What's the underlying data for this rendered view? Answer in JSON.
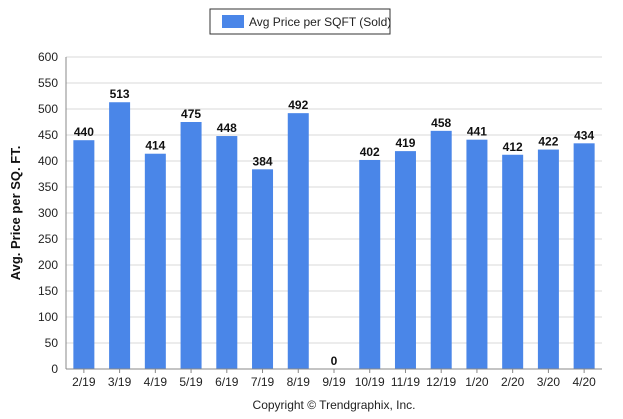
{
  "chart_data": {
    "type": "bar",
    "categories": [
      "2/19",
      "3/19",
      "4/19",
      "5/19",
      "6/19",
      "7/19",
      "8/19",
      "9/19",
      "10/19",
      "11/19",
      "12/19",
      "1/20",
      "2/20",
      "3/20",
      "4/20"
    ],
    "series": [
      {
        "name": "Avg Price per SQFT (Sold)",
        "values": [
          440,
          513,
          414,
          475,
          448,
          384,
          492,
          0,
          402,
          419,
          458,
          441,
          412,
          422,
          434
        ],
        "color": "#4a86e8"
      }
    ],
    "ylabel": "Avg. Price per SQ. FT.",
    "xlabel": "",
    "ylim": [
      0,
      600
    ],
    "yticks": [
      0,
      50,
      100,
      150,
      200,
      250,
      300,
      350,
      400,
      450,
      500,
      550,
      600
    ],
    "grid": true,
    "legend_position": "top-center",
    "data_labels": true
  },
  "footer": {
    "copyright": "Copyright © Trendgraphix, Inc."
  },
  "colors": {
    "bar": "#4a86e8",
    "grid": "#d9d9d9",
    "axis": "#888888"
  }
}
